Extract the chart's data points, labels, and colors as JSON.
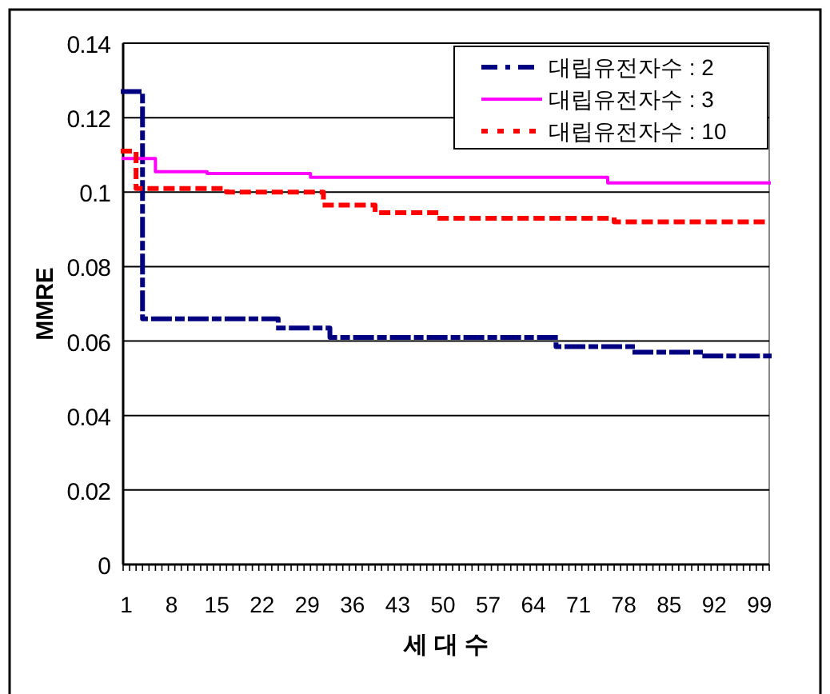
{
  "chart_data": {
    "type": "step",
    "xlabel": "세 대 수",
    "ylabel": "MMRE",
    "xlim": [
      0.5,
      100.5
    ],
    "xticks": [
      1,
      8,
      15,
      22,
      29,
      36,
      43,
      50,
      57,
      64,
      71,
      78,
      85,
      92,
      99
    ],
    "ylim": [
      0,
      0.14
    ],
    "yticks": [
      0,
      0.02,
      0.04,
      0.06,
      0.08,
      0.1,
      0.12,
      0.14
    ],
    "grid": "y",
    "legend": "top right",
    "marker": "none",
    "x": [
      1,
      2,
      3,
      4,
      5,
      6,
      7,
      8,
      9,
      10,
      11,
      12,
      13,
      14,
      15,
      16,
      17,
      18,
      19,
      20,
      21,
      22,
      23,
      24,
      25,
      26,
      27,
      28,
      29,
      30,
      31,
      32,
      33,
      34,
      35,
      36,
      37,
      38,
      39,
      40,
      41,
      42,
      43,
      44,
      45,
      46,
      47,
      48,
      49,
      50,
      51,
      52,
      53,
      54,
      55,
      56,
      57,
      58,
      59,
      60,
      61,
      62,
      63,
      64,
      65,
      66,
      67,
      68,
      69,
      70,
      71,
      72,
      73,
      74,
      75,
      76,
      77,
      78,
      79,
      80,
      81,
      82,
      83,
      84,
      85,
      86,
      87,
      88,
      89,
      90,
      91,
      92,
      93,
      94,
      95,
      96,
      97,
      98,
      99,
      100
    ],
    "series": [
      {
        "name": "대립유전자수 : 2",
        "color": "#000080",
        "line_style": "dashdot",
        "values": [
          0.127,
          0.127,
          0.127,
          0.066,
          0.066,
          0.066,
          0.066,
          0.066,
          0.066,
          0.066,
          0.066,
          0.066,
          0.066,
          0.066,
          0.066,
          0.066,
          0.066,
          0.066,
          0.066,
          0.066,
          0.066,
          0.066,
          0.066,
          0.066,
          0.0635,
          0.0635,
          0.0635,
          0.0635,
          0.0635,
          0.0635,
          0.0635,
          0.0635,
          0.061,
          0.061,
          0.061,
          0.061,
          0.061,
          0.061,
          0.061,
          0.061,
          0.061,
          0.061,
          0.061,
          0.061,
          0.061,
          0.061,
          0.061,
          0.061,
          0.061,
          0.061,
          0.061,
          0.061,
          0.061,
          0.061,
          0.061,
          0.061,
          0.061,
          0.061,
          0.061,
          0.061,
          0.061,
          0.061,
          0.061,
          0.061,
          0.061,
          0.061,
          0.061,
          0.0585,
          0.0585,
          0.0585,
          0.0585,
          0.0585,
          0.0585,
          0.0585,
          0.0585,
          0.0585,
          0.0585,
          0.0585,
          0.0585,
          0.057,
          0.057,
          0.057,
          0.057,
          0.057,
          0.057,
          0.057,
          0.057,
          0.057,
          0.057,
          0.057,
          0.056,
          0.056,
          0.056,
          0.056,
          0.056,
          0.056,
          0.056,
          0.056,
          0.056,
          0.056
        ]
      },
      {
        "name": "대립유전자수 : 3",
        "color": "#ff00ff",
        "line_style": "solid",
        "values": [
          0.109,
          0.109,
          0.109,
          0.109,
          0.109,
          0.1055,
          0.1055,
          0.1055,
          0.1055,
          0.1055,
          0.1055,
          0.1055,
          0.1055,
          0.105,
          0.105,
          0.105,
          0.105,
          0.105,
          0.105,
          0.105,
          0.105,
          0.105,
          0.105,
          0.105,
          0.105,
          0.105,
          0.105,
          0.105,
          0.105,
          0.104,
          0.104,
          0.104,
          0.104,
          0.104,
          0.104,
          0.104,
          0.104,
          0.104,
          0.104,
          0.104,
          0.104,
          0.104,
          0.104,
          0.104,
          0.104,
          0.104,
          0.104,
          0.104,
          0.104,
          0.104,
          0.104,
          0.104,
          0.104,
          0.104,
          0.104,
          0.104,
          0.104,
          0.104,
          0.104,
          0.104,
          0.104,
          0.104,
          0.104,
          0.104,
          0.104,
          0.104,
          0.104,
          0.104,
          0.104,
          0.104,
          0.104,
          0.104,
          0.104,
          0.104,
          0.104,
          0.1025,
          0.1025,
          0.1025,
          0.1025,
          0.1025,
          0.1025,
          0.1025,
          0.1025,
          0.1025,
          0.1025,
          0.1025,
          0.1025,
          0.1025,
          0.1025,
          0.1025,
          0.1025,
          0.1025,
          0.1025,
          0.1025,
          0.1025,
          0.1025,
          0.1025,
          0.1025,
          0.1025,
          0.1025
        ]
      },
      {
        "name": "대립유전자수 : 10",
        "color": "#ff0000",
        "line_style": "dotted",
        "values": [
          0.111,
          0.111,
          0.101,
          0.101,
          0.101,
          0.101,
          0.101,
          0.101,
          0.101,
          0.101,
          0.101,
          0.101,
          0.101,
          0.101,
          0.101,
          0.101,
          0.1,
          0.1,
          0.1,
          0.1,
          0.1,
          0.1,
          0.1,
          0.1,
          0.1,
          0.1,
          0.1,
          0.1,
          0.1,
          0.1,
          0.1,
          0.0965,
          0.0965,
          0.0965,
          0.0965,
          0.0965,
          0.0965,
          0.0965,
          0.0965,
          0.0945,
          0.0945,
          0.0945,
          0.0945,
          0.0945,
          0.0945,
          0.0945,
          0.0945,
          0.0945,
          0.0945,
          0.093,
          0.093,
          0.093,
          0.093,
          0.093,
          0.093,
          0.093,
          0.093,
          0.093,
          0.093,
          0.093,
          0.093,
          0.093,
          0.093,
          0.093,
          0.093,
          0.093,
          0.093,
          0.093,
          0.093,
          0.093,
          0.093,
          0.093,
          0.093,
          0.093,
          0.093,
          0.093,
          0.092,
          0.092,
          0.092,
          0.092,
          0.092,
          0.092,
          0.092,
          0.092,
          0.092,
          0.092,
          0.092,
          0.092,
          0.092,
          0.092,
          0.092,
          0.092,
          0.092,
          0.092,
          0.092,
          0.092,
          0.092,
          0.092,
          0.092,
          0.092
        ]
      }
    ]
  }
}
